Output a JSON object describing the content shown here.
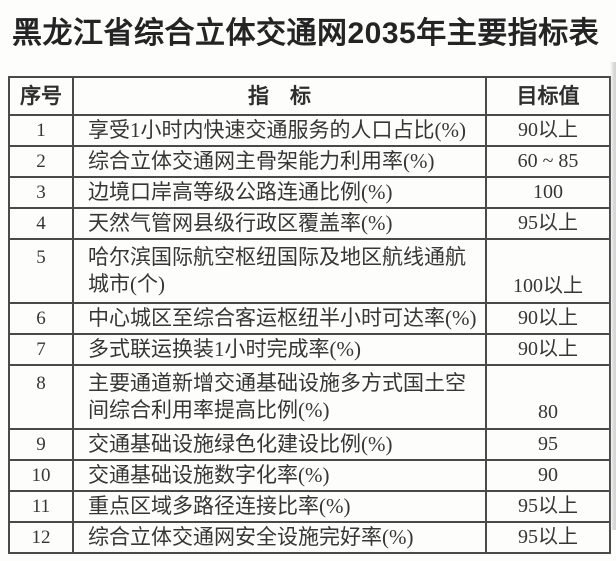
{
  "title": "黑龙江省综合立体交通网2035年主要指标表",
  "table": {
    "headers": {
      "no": "序号",
      "indicator": "指　标",
      "target": "目标值"
    },
    "rows": [
      {
        "no": "1",
        "indicator": "享受1小时内快速交通服务的人口占比(%)",
        "target": "90以上",
        "lines": 1
      },
      {
        "no": "2",
        "indicator": "综合立体交通网主骨架能力利用率(%)",
        "target": "60 ~ 85",
        "lines": 1
      },
      {
        "no": "3",
        "indicator": "边境口岸高等级公路连通比例(%)",
        "target": "100",
        "lines": 1
      },
      {
        "no": "4",
        "indicator": "天然气管网县级行政区覆盖率(%)",
        "target": "95以上",
        "lines": 1
      },
      {
        "no": "5",
        "indicator": "哈尔滨国际航空枢纽国际及地区航线通航城市(个)",
        "target": "100以上",
        "lines": 2
      },
      {
        "no": "6",
        "indicator": "中心城区至综合客运枢纽半小时可达率(%)",
        "target": "90以上",
        "lines": 1
      },
      {
        "no": "7",
        "indicator": "多式联运换装1小时完成率(%)",
        "target": "90以上",
        "lines": 1
      },
      {
        "no": "8",
        "indicator": "主要通道新增交通基础设施多方式国土空间综合利用率提高比例(%)",
        "target": "80",
        "lines": 2
      },
      {
        "no": "9",
        "indicator": "交通基础设施绿色化建设比例(%)",
        "target": "95",
        "lines": 1
      },
      {
        "no": "10",
        "indicator": "交通基础设施数字化率(%)",
        "target": "90",
        "lines": 1
      },
      {
        "no": "11",
        "indicator": "重点区域多路径连接比率(%)",
        "target": "95以上",
        "lines": 1
      },
      {
        "no": "12",
        "indicator": "综合立体交通网安全设施完好率(%)",
        "target": "95以上",
        "lines": 1
      }
    ]
  }
}
